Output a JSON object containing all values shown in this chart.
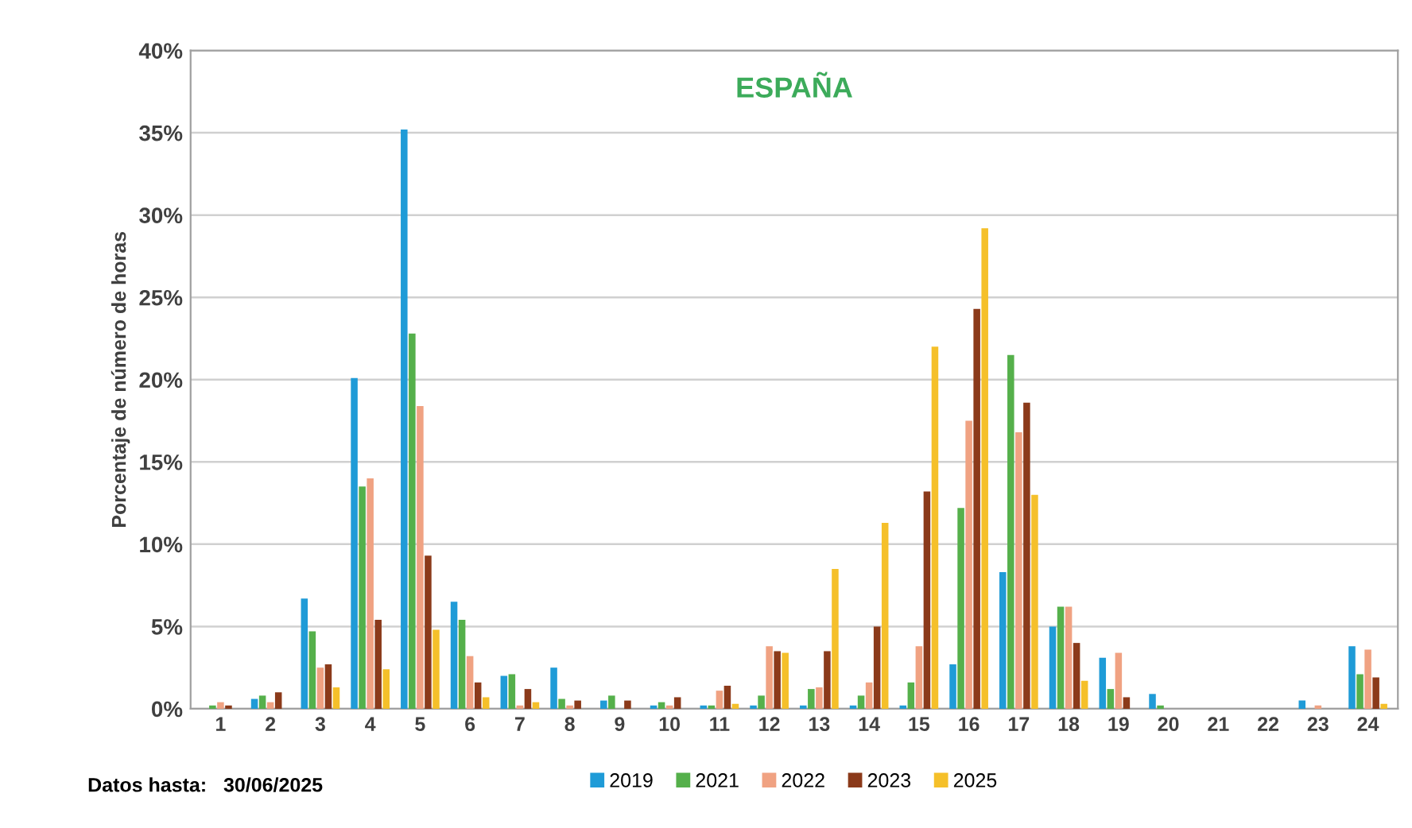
{
  "chart_data": {
    "type": "bar",
    "title": "ESPAÑA",
    "ylabel": "Porcentaje de número de horas",
    "categories": [
      "1",
      "2",
      "3",
      "4",
      "5",
      "6",
      "7",
      "8",
      "9",
      "10",
      "11",
      "12",
      "13",
      "14",
      "15",
      "16",
      "17",
      "18",
      "19",
      "20",
      "21",
      "22",
      "23",
      "24"
    ],
    "series": [
      {
        "name": "2019",
        "color": "#1f9bd7",
        "values": [
          0,
          0.6,
          6.7,
          20.1,
          35.2,
          6.5,
          2.0,
          2.5,
          0.5,
          0.2,
          0.2,
          0.2,
          0.2,
          0.2,
          0.2,
          2.7,
          8.3,
          5.0,
          3.1,
          0.9,
          0,
          0,
          0.5,
          3.8
        ]
      },
      {
        "name": "2021",
        "color": "#55b04b",
        "values": [
          0.2,
          0.8,
          4.7,
          13.5,
          22.8,
          5.4,
          2.1,
          0.6,
          0.8,
          0.4,
          0.2,
          0.8,
          1.2,
          0.8,
          1.6,
          12.2,
          21.5,
          6.2,
          1.2,
          0.2,
          0,
          0,
          0,
          2.1
        ]
      },
      {
        "name": "2022",
        "color": "#f0a282",
        "values": [
          0.4,
          0.4,
          2.5,
          14.0,
          18.4,
          3.2,
          0.2,
          0.2,
          0,
          0.2,
          1.1,
          3.8,
          1.3,
          1.6,
          3.8,
          17.5,
          16.8,
          6.2,
          3.4,
          0,
          0,
          0,
          0.2,
          3.6
        ]
      },
      {
        "name": "2023",
        "color": "#8b3a1a",
        "values": [
          0.2,
          1.0,
          2.7,
          5.4,
          9.3,
          1.6,
          1.2,
          0.5,
          0.5,
          0.7,
          1.4,
          3.5,
          3.5,
          5.0,
          13.2,
          24.3,
          18.6,
          4.0,
          0.7,
          0,
          0,
          0,
          0,
          1.9
        ]
      },
      {
        "name": "2025",
        "color": "#f5c02a",
        "values": [
          0,
          0,
          1.3,
          2.4,
          4.8,
          0.7,
          0.4,
          0,
          0,
          0,
          0.3,
          3.4,
          8.5,
          11.3,
          22.0,
          29.2,
          13.0,
          1.7,
          0,
          0,
          0,
          0,
          0,
          0.3
        ]
      }
    ],
    "ylim": [
      0,
      40
    ],
    "yticks": [
      {
        "value": 0,
        "label": "0%"
      },
      {
        "value": 5,
        "label": "5%"
      },
      {
        "value": 10,
        "label": "10%"
      },
      {
        "value": 15,
        "label": "15%"
      },
      {
        "value": 20,
        "label": "20%"
      },
      {
        "value": 25,
        "label": "25%"
      },
      {
        "value": 30,
        "label": "30%"
      },
      {
        "value": 35,
        "label": "35%"
      },
      {
        "value": 40,
        "label": "40%"
      }
    ],
    "grid": "y",
    "legend": "bottom",
    "annotations": [
      "Datos hasta:   30/06/2025"
    ]
  }
}
